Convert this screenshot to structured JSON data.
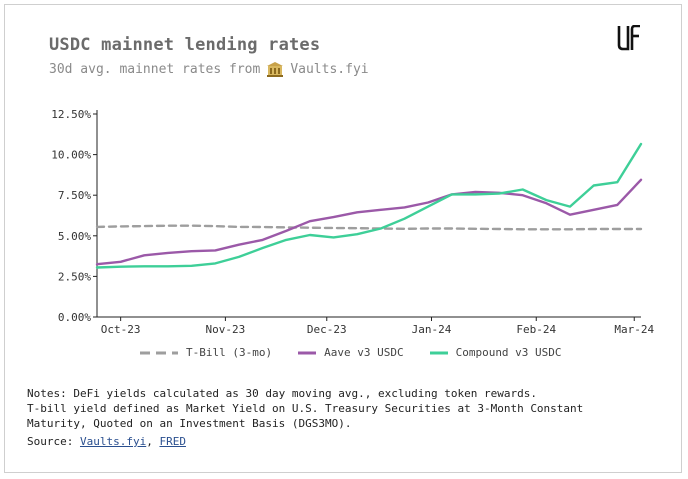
{
  "header": {
    "title": "USDC mainnet lending rates",
    "subtitle_prefix": "30d avg. mainnet rates from",
    "subtitle_source": "Vaults.fyi",
    "bank_icon": "bank-icon",
    "logo_icon": "brand-logo-icon"
  },
  "chart_data": {
    "type": "line",
    "x": [
      "2023-09-24",
      "2023-10-01",
      "2023-10-08",
      "2023-10-15",
      "2023-10-22",
      "2023-10-29",
      "2023-11-05",
      "2023-11-12",
      "2023-11-19",
      "2023-11-26",
      "2023-12-03",
      "2023-12-10",
      "2023-12-17",
      "2023-12-24",
      "2023-12-31",
      "2024-01-07",
      "2024-01-14",
      "2024-01-21",
      "2024-01-28",
      "2024-02-04",
      "2024-02-11",
      "2024-02-18",
      "2024-02-25",
      "2024-03-03"
    ],
    "xlabel": "",
    "ylabel": "",
    "ylim": [
      0,
      12.5
    ],
    "yticks": [
      0,
      2.5,
      5,
      7.5,
      10,
      12.5
    ],
    "ytick_labels": [
      "0.00%",
      "2.50%",
      "5.00%",
      "7.50%",
      "10.00%",
      "12.50%"
    ],
    "xtick_labels": [
      {
        "date": "2023-10-01",
        "label": "Oct-23"
      },
      {
        "date": "2023-11-01",
        "label": "Nov-23"
      },
      {
        "date": "2023-12-01",
        "label": "Dec-23"
      },
      {
        "date": "2024-01-01",
        "label": "Jan-24"
      },
      {
        "date": "2024-02-01",
        "label": "Feb-24"
      },
      {
        "date": "2024-03-01",
        "label": "Mar-24"
      }
    ],
    "grid": false,
    "legend_position": "bottom",
    "series": [
      {
        "name": "T-Bill (3-mo)",
        "color": "#9e9e9e",
        "style": "dashed",
        "values": [
          5.55,
          5.58,
          5.6,
          5.62,
          5.62,
          5.6,
          5.55,
          5.54,
          5.52,
          5.5,
          5.48,
          5.47,
          5.45,
          5.43,
          5.45,
          5.45,
          5.43,
          5.42,
          5.4,
          5.4,
          5.4,
          5.42,
          5.42,
          5.42
        ]
      },
      {
        "name": "Aave v3 USDC",
        "color": "#9b59a8",
        "style": "solid",
        "values": [
          3.25,
          3.4,
          3.8,
          3.95,
          4.05,
          4.1,
          4.45,
          4.75,
          5.3,
          5.9,
          6.15,
          6.45,
          6.6,
          6.75,
          7.05,
          7.55,
          7.7,
          7.65,
          7.5,
          7.0,
          6.3,
          6.6,
          6.9,
          8.45
        ]
      },
      {
        "name": "Compound v3 USDC",
        "color": "#3ecf98",
        "style": "solid",
        "values": [
          3.05,
          3.1,
          3.12,
          3.12,
          3.15,
          3.3,
          3.7,
          4.25,
          4.75,
          5.05,
          4.9,
          5.1,
          5.45,
          6.05,
          6.8,
          7.55,
          7.55,
          7.6,
          7.85,
          7.2,
          6.8,
          8.1,
          8.3,
          10.65
        ]
      }
    ]
  },
  "notes": {
    "line1": "Notes: DeFi yields calculated as 30 day moving avg., excluding token rewards.",
    "line2": "T-bill yield defined as Market Yield on U.S. Treasury Securities at 3-Month Constant",
    "line3": "Maturity, Quoted on an Investment Basis (DGS3MO).",
    "source_prefix": "Source: ",
    "source_link1": "Vaults.fyi",
    "source_sep": ", ",
    "source_link2": "FRED"
  }
}
